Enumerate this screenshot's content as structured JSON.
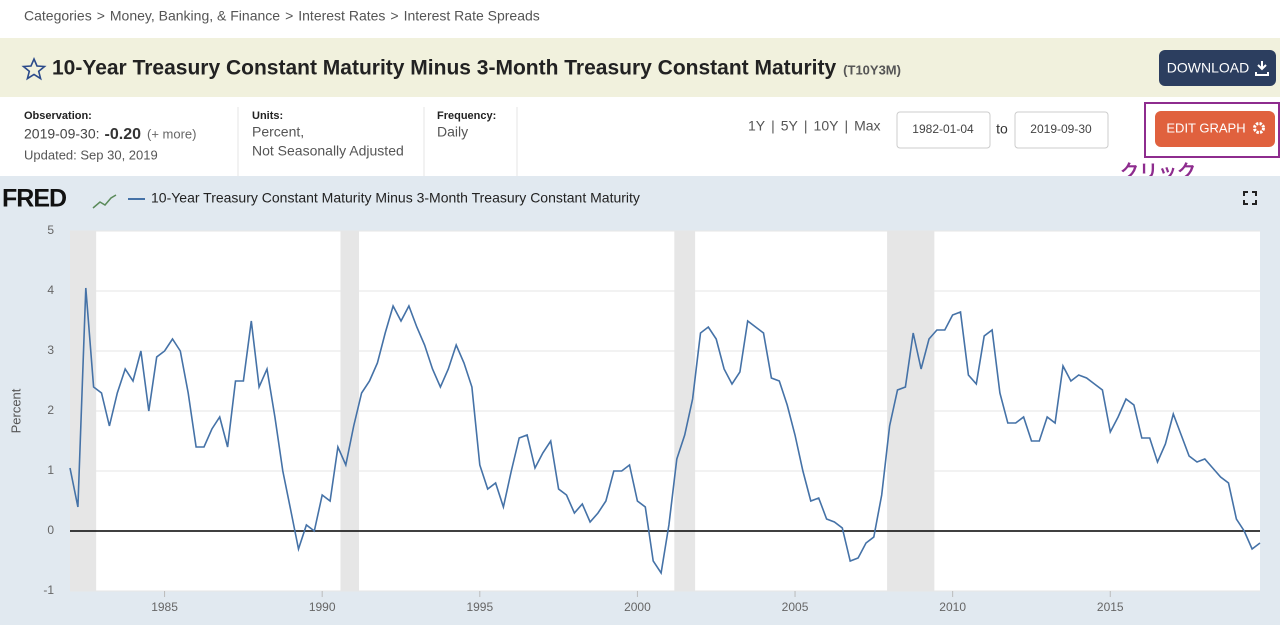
{
  "breadcrumb": {
    "items": [
      "Categories",
      "Money, Banking, & Finance",
      "Interest Rates",
      "Interest Rate Spreads"
    ],
    "separator": ">"
  },
  "header": {
    "title": "10-Year Treasury Constant Maturity Minus 3-Month Treasury Constant Maturity",
    "code": "(T10Y3M)",
    "download": "DOWNLOAD"
  },
  "info": {
    "observation": {
      "label": "Observation:",
      "date": "2019-09-30:",
      "value": "-0.20",
      "more": "(+ more)",
      "updated": "Updated: Sep 30, 2019"
    },
    "units": {
      "label": "Units:",
      "lines": [
        "Percent,",
        "Not Seasonally Adjusted"
      ]
    },
    "frequency": {
      "label": "Frequency:",
      "value": "Daily"
    }
  },
  "controls": {
    "ranges": [
      "1Y",
      "5Y",
      "10Y",
      "Max"
    ],
    "range_separator": "|",
    "start": "1982-01-04",
    "to": "to",
    "end": "2019-09-30",
    "edit": "EDIT GRAPH"
  },
  "annotation": "クリック",
  "chart_data": {
    "type": "line",
    "logo": "FRED",
    "ylabel": "Percent",
    "x": [
      1982,
      1982.25,
      1982.5,
      1982.75,
      1983,
      1983.25,
      1983.5,
      1983.75,
      1984,
      1984.25,
      1984.5,
      1984.75,
      1985,
      1985.25,
      1985.5,
      1985.75,
      1986,
      1986.25,
      1986.5,
      1986.75,
      1987,
      1987.25,
      1987.5,
      1987.75,
      1988,
      1988.25,
      1988.5,
      1988.75,
      1989,
      1989.25,
      1989.5,
      1989.75,
      1990,
      1990.25,
      1990.5,
      1990.75,
      1991,
      1991.25,
      1991.5,
      1991.75,
      1992,
      1992.25,
      1992.5,
      1992.75,
      1993,
      1993.25,
      1993.5,
      1993.75,
      1994,
      1994.25,
      1994.5,
      1994.75,
      1995,
      1995.25,
      1995.5,
      1995.75,
      1996,
      1996.25,
      1996.5,
      1996.75,
      1997,
      1997.25,
      1997.5,
      1997.75,
      1998,
      1998.25,
      1998.5,
      1998.75,
      1999,
      1999.25,
      1999.5,
      1999.75,
      2000,
      2000.25,
      2000.5,
      2000.75,
      2001,
      2001.25,
      2001.5,
      2001.75,
      2002,
      2002.25,
      2002.5,
      2002.75,
      2003,
      2003.25,
      2003.5,
      2003.75,
      2004,
      2004.25,
      2004.5,
      2004.75,
      2005,
      2005.25,
      2005.5,
      2005.75,
      2006,
      2006.25,
      2006.5,
      2006.75,
      2007,
      2007.25,
      2007.5,
      2007.75,
      2008,
      2008.25,
      2008.5,
      2008.75,
      2009,
      2009.25,
      2009.5,
      2009.75,
      2010,
      2010.25,
      2010.5,
      2010.75,
      2011,
      2011.25,
      2011.5,
      2011.75,
      2012,
      2012.25,
      2012.5,
      2012.75,
      2013,
      2013.25,
      2013.5,
      2013.75,
      2014,
      2014.25,
      2014.5,
      2014.75,
      2015,
      2015.25,
      2015.5,
      2015.75,
      2016,
      2016.25,
      2016.5,
      2016.75,
      2017,
      2017.25,
      2017.5,
      2017.75,
      2018,
      2018.25,
      2018.5,
      2018.75,
      2019,
      2019.25,
      2019.5,
      2019.75
    ],
    "series": [
      {
        "name": "10-Year Treasury Constant Maturity Minus 3-Month Treasury Constant Maturity",
        "color": "#4572a7",
        "values": [
          1.05,
          0.4,
          4.05,
          2.4,
          2.3,
          1.75,
          2.3,
          2.7,
          2.5,
          3.0,
          2.0,
          2.9,
          3.0,
          3.2,
          3.0,
          2.3,
          1.4,
          1.4,
          1.7,
          1.9,
          1.4,
          2.5,
          2.5,
          3.5,
          2.4,
          2.7,
          1.9,
          1.0,
          0.35,
          -0.3,
          0.1,
          0.0,
          0.6,
          0.5,
          1.4,
          1.1,
          1.75,
          2.3,
          2.5,
          2.8,
          3.3,
          3.75,
          3.5,
          3.75,
          3.4,
          3.1,
          2.7,
          2.4,
          2.7,
          3.1,
          2.8,
          2.4,
          1.1,
          0.7,
          0.8,
          0.4,
          1.0,
          1.55,
          1.6,
          1.05,
          1.3,
          1.5,
          0.7,
          0.6,
          0.3,
          0.45,
          0.15,
          0.3,
          0.5,
          1.0,
          1.0,
          1.1,
          0.5,
          0.4,
          -0.5,
          -0.7,
          0.1,
          1.2,
          1.6,
          2.2,
          3.3,
          3.4,
          3.2,
          2.7,
          2.45,
          2.65,
          3.5,
          3.4,
          3.3,
          2.55,
          2.5,
          2.1,
          1.6,
          1.0,
          0.5,
          0.55,
          0.2,
          0.15,
          0.05,
          -0.5,
          -0.45,
          -0.2,
          -0.1,
          0.6,
          1.75,
          2.35,
          2.4,
          3.3,
          2.7,
          3.2,
          3.35,
          3.35,
          3.6,
          3.65,
          2.6,
          2.45,
          3.25,
          3.35,
          2.3,
          1.8,
          1.8,
          1.9,
          1.5,
          1.5,
          1.9,
          1.8,
          2.75,
          2.5,
          2.6,
          2.55,
          2.45,
          2.35,
          1.65,
          1.9,
          2.2,
          2.1,
          1.55,
          1.55,
          1.15,
          1.45,
          1.95,
          1.6,
          1.25,
          1.15,
          1.2,
          1.05,
          0.9,
          0.8,
          0.2,
          0.0,
          -0.3,
          -0.2
        ]
      }
    ],
    "xlim": [
      1982,
      2019.75
    ],
    "ylim": [
      -1,
      5
    ],
    "xticks": [
      1985,
      1990,
      1995,
      2000,
      2005,
      2010,
      2015
    ],
    "yticks": [
      -1,
      0,
      1,
      2,
      3,
      4,
      5
    ],
    "grid": true,
    "recessions": [
      [
        1982,
        1982.83
      ],
      [
        1990.58,
        1991.17
      ],
      [
        2001.17,
        2001.83
      ],
      [
        2007.92,
        2009.42
      ]
    ],
    "recession_color": "#e6e6e6"
  }
}
